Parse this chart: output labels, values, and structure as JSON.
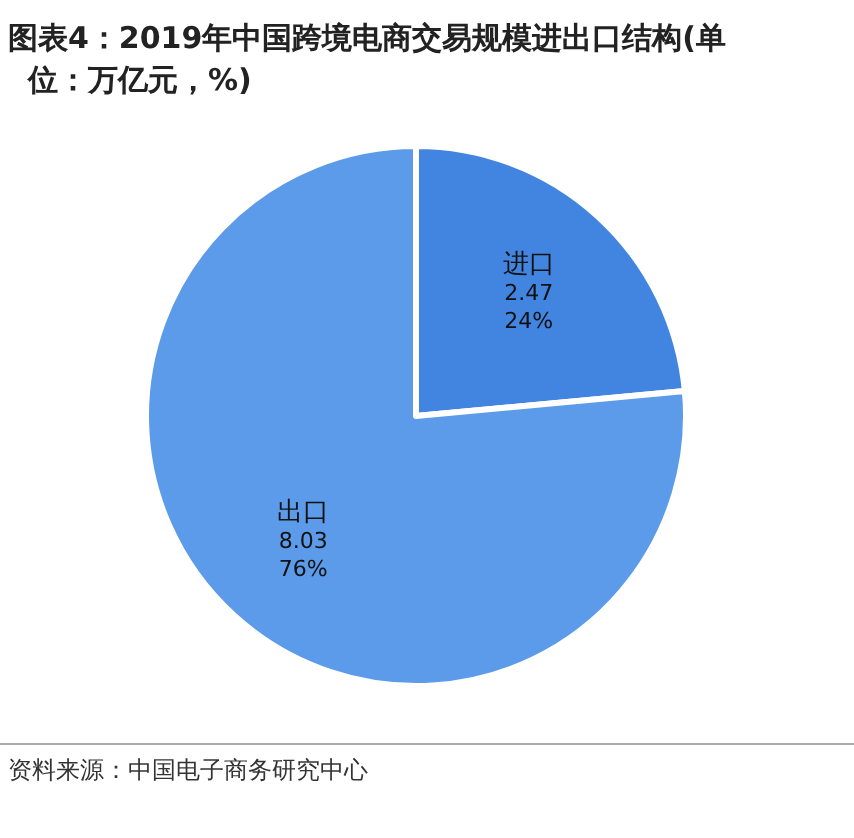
{
  "chart_data": {
    "type": "pie",
    "title": "图表4：2019年中国跨境电商交易规模进出口结构(单位：万亿元，%)",
    "categories": [
      "进口",
      "出口"
    ],
    "values": [
      2.47,
      8.03
    ],
    "value_labels": [
      "2.47\n24%",
      "8.03\n76%"
    ],
    "colors": [
      "#4285e0",
      "#5b9bea"
    ],
    "annotations": [
      "资料来源：中国电子商务研究中心"
    ]
  }
}
